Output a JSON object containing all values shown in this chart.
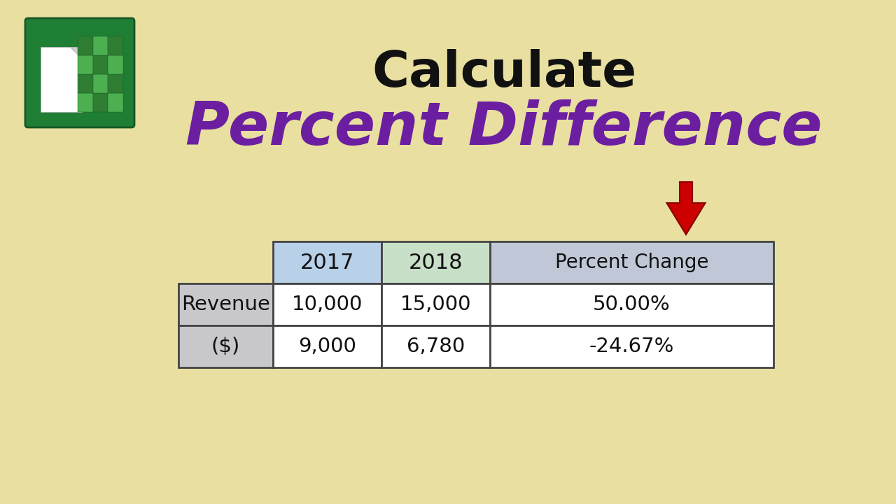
{
  "background_color": "#e8dfa0",
  "title_calculate": "Calculate",
  "title_percent_diff": "Percent Difference",
  "title_calculate_color": "#111111",
  "title_percent_diff_color": "#6b1fa0",
  "title_calculate_fontsize": 52,
  "title_percent_diff_fontsize": 62,
  "col_headers": [
    "2017",
    "2018",
    "Percent Change"
  ],
  "row_labels": [
    "Revenue",
    "($)"
  ],
  "data_rows": [
    [
      "10,000",
      "15,000",
      "50.00%"
    ],
    [
      "9,000",
      "6,780",
      "-24.67%"
    ]
  ],
  "header_bg_2017": "#b8d0e8",
  "header_bg_2018": "#c8dfc8",
  "header_bg_pct": "#c0c8d8",
  "row_label_bg": "#c8c8cc",
  "data_bg": "#ffffff",
  "border_color": "#444444",
  "arrow_color": "#cc0000",
  "arrow_dark": "#880000"
}
